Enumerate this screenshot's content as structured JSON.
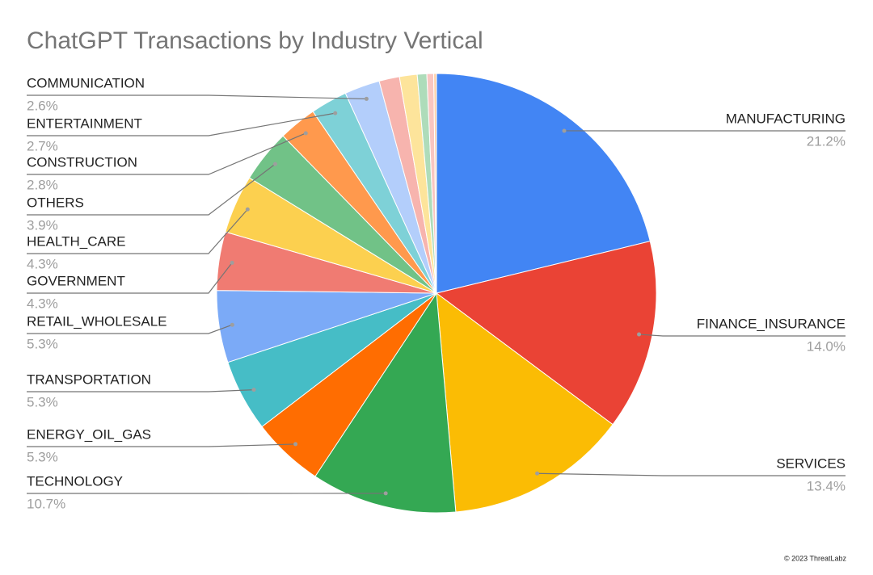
{
  "chart_data": {
    "type": "pie",
    "title": "ChatGPT Transactions by Industry Vertical",
    "categories": [
      "MANUFACTURING",
      "FINANCE_INSURANCE",
      "SERVICES",
      "TECHNOLOGY",
      "ENERGY_OIL_GAS",
      "TRANSPORTATION",
      "RETAIL_WHOLESALE",
      "GOVERNMENT",
      "HEALTH_CARE",
      "OTHERS",
      "CONSTRUCTION",
      "ENTERTAINMENT",
      "COMMUNICATION",
      null,
      null,
      null,
      null,
      null
    ],
    "values": [
      21.2,
      14.0,
      13.4,
      10.7,
      5.3,
      5.3,
      5.3,
      4.3,
      4.3,
      3.9,
      2.8,
      2.7,
      2.6,
      1.5,
      1.3,
      0.7,
      0.5,
      0.2
    ],
    "value_labels": [
      "21.2%",
      "14.0%",
      "13.4%",
      "10.7%",
      "5.3%",
      "5.3%",
      "5.3%",
      "4.3%",
      "4.3%",
      "3.9%",
      "2.8%",
      "2.7%",
      "2.6%",
      null,
      null,
      null,
      null,
      null
    ],
    "colors": [
      "#4285f4",
      "#ea4335",
      "#fbbc04",
      "#34a853",
      "#ff6d01",
      "#46bdc6",
      "#7baaf7",
      "#f07b72",
      "#fcd04f",
      "#71c287",
      "#ff994d",
      "#7ed1d7",
      "#b3cefb",
      "#f7b4ae",
      "#fde49b",
      "#aedcba",
      "#f9c6c1",
      "#ffd0a8"
    ],
    "credit": "© 2023 ThreatLabz"
  }
}
